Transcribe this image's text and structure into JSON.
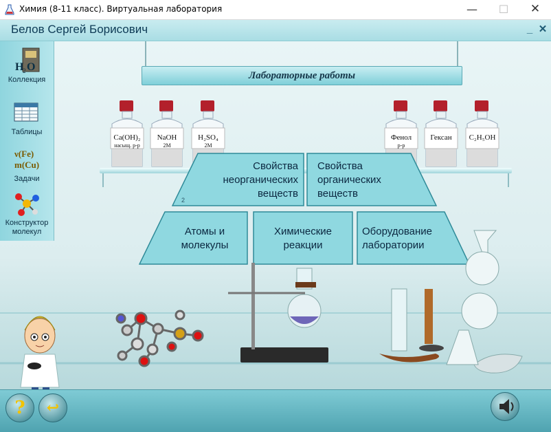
{
  "window": {
    "title": "Химия (8-11 класс). Виртуальная лаборатория",
    "minimize": "—",
    "maximize": "☐",
    "close": "✕"
  },
  "user": {
    "name": "Белов Сергей Борисович",
    "minimize": "_",
    "close": "✕"
  },
  "sidebar": {
    "items": [
      {
        "label": "Коллекция",
        "icon": "collection-icon"
      },
      {
        "label": "Таблицы",
        "icon": "tables-icon"
      },
      {
        "label": "Задачи",
        "icon": "tasks-icon"
      },
      {
        "label": "Конструктор молекул",
        "icon": "molecule-constructor-icon"
      }
    ]
  },
  "banner": {
    "title": "Лабораторные работы"
  },
  "bottles": [
    {
      "main": "Ca(OH)₂",
      "sub": "насыщ. р-р"
    },
    {
      "main": "NaOH",
      "sub": "2M"
    },
    {
      "main": "H₂SO₄",
      "sub": "2M"
    },
    {
      "main": "Фенол",
      "sub": "р-р"
    },
    {
      "main": "Гексан",
      "sub": ""
    },
    {
      "main": "C₂H₅OH",
      "sub": ""
    }
  ],
  "menu": {
    "inorganic": {
      "label": "Свойства неорганических веществ",
      "badge": "2"
    },
    "organic": {
      "label": "Свойства органических веществ"
    },
    "atoms": {
      "label": "Атомы и молекулы"
    },
    "reactions": {
      "label": "Химические реакции"
    },
    "equipment": {
      "label": "Оборудование лаборатории"
    }
  },
  "bottom": {
    "help_glyph": "?",
    "back_glyph": "↩",
    "sound": "speaker-icon"
  },
  "colors": {
    "tile_fill": "#8fd8e0",
    "tile_border": "#2f8a98",
    "accent": "#7fcbd5",
    "cap_red": "#b3202b"
  }
}
